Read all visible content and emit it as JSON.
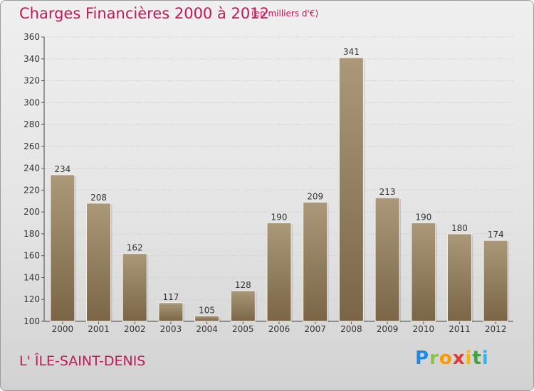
{
  "header": {
    "title": "Charges Financières 2000 à 2012",
    "subtitle": "(en milliers d'€)"
  },
  "footer": {
    "commune": "L' ÎLE-SAINT-DENIS",
    "logo_letters": [
      "P",
      "r",
      "o",
      "x",
      "i",
      "t",
      "i"
    ],
    "logo_colors": [
      "#1e88e5",
      "#8bc34a",
      "#ff9800",
      "#e53935",
      "#ffb300",
      "#43a047",
      "#29b6f6"
    ]
  },
  "colors": {
    "title": "#c2185b",
    "bar_light": "#aa9878",
    "bar_dark": "#7a6646"
  },
  "chart_data": {
    "type": "bar",
    "categories": [
      "2000",
      "2001",
      "2002",
      "2003",
      "2004",
      "2005",
      "2006",
      "2007",
      "2008",
      "2009",
      "2010",
      "2011",
      "2012"
    ],
    "values": [
      234,
      208,
      162,
      117,
      105,
      128,
      190,
      209,
      341,
      213,
      190,
      180,
      174
    ],
    "title": "Charges Financières 2000 à 2012",
    "subtitle": "(en milliers d'€)",
    "xlabel": "",
    "ylabel": "",
    "ylim": [
      100,
      360
    ],
    "yticks": [
      100,
      120,
      140,
      160,
      180,
      200,
      220,
      240,
      260,
      280,
      300,
      320,
      340,
      360
    ],
    "grid": true
  }
}
